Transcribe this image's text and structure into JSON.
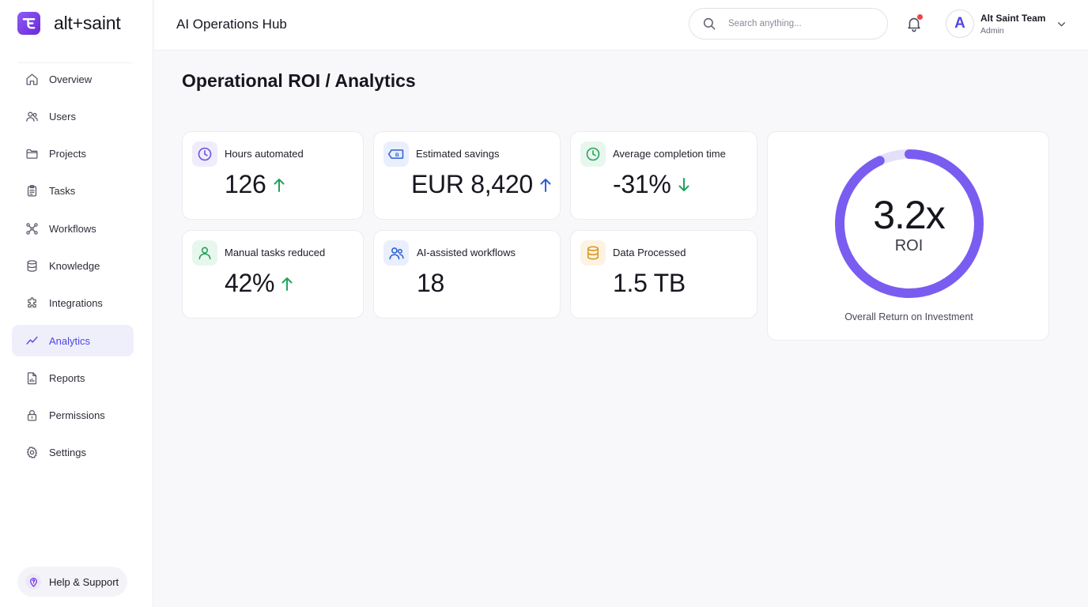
{
  "brand": {
    "name": "alt+saint"
  },
  "topbar": {
    "title": "AI Operations Hub",
    "search_placeholder": "Search anything...",
    "user": {
      "initial": "A",
      "name": "Alt Saint Team",
      "role": "Admin"
    }
  },
  "sidebar": {
    "items": [
      {
        "label": "Overview",
        "icon": "home-icon"
      },
      {
        "label": "Users",
        "icon": "users-icon"
      },
      {
        "label": "Projects",
        "icon": "folder-icon"
      },
      {
        "label": "Tasks",
        "icon": "clipboard-icon"
      },
      {
        "label": "Workflows",
        "icon": "workflow-icon"
      },
      {
        "label": "Knowledge",
        "icon": "database-icon"
      },
      {
        "label": "Integrations",
        "icon": "puzzle-icon"
      },
      {
        "label": "Analytics",
        "icon": "trend-line-icon",
        "active": true
      },
      {
        "label": "Reports",
        "icon": "report-icon"
      },
      {
        "label": "Permissions",
        "icon": "lock-icon"
      },
      {
        "label": "Settings",
        "icon": "gear-icon"
      }
    ],
    "help_label": "Help & Support"
  },
  "page": {
    "title": "Operational ROI / Analytics"
  },
  "metrics": [
    {
      "label": "Hours automated",
      "value": "126",
      "trend": "up",
      "icon": "clock-icon"
    },
    {
      "label": "Estimated savings",
      "value": "EUR 8,420",
      "trend": "up",
      "icon": "banknote-icon"
    },
    {
      "label": "Average completion time",
      "value": "-31%",
      "trend": "down",
      "icon": "clock-icon"
    },
    {
      "label": "Manual tasks reduced",
      "value": "42%",
      "trend": "up",
      "icon": "user-icon"
    },
    {
      "label": "AI-assisted workflows",
      "value": "18",
      "trend": "none",
      "icon": "users-icon"
    },
    {
      "label": "Data Processed",
      "value": "1.5 TB",
      "trend": "none",
      "icon": "database-icon"
    }
  ],
  "roi": {
    "value": "3.2x",
    "unit": "ROI",
    "caption": "Overall Return on Investment",
    "ring_fraction": 0.93,
    "colors": {
      "ring": "#7b5cf0",
      "track": "#e4dffb"
    }
  },
  "colors": {
    "accent": "#4f46e5",
    "trend_up_green": "#22a35a",
    "trend_up_blue": "#2f5fd6",
    "notification": "#ef4444"
  }
}
